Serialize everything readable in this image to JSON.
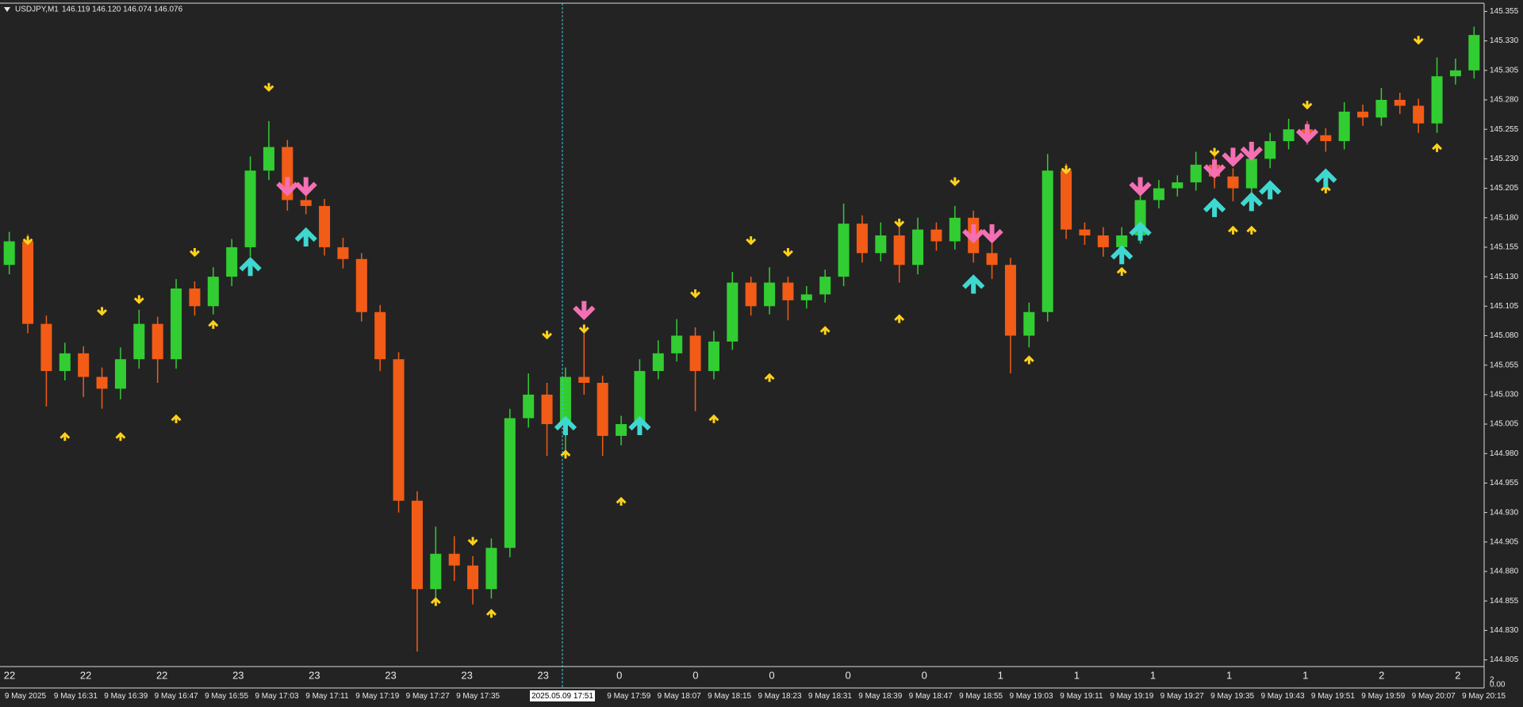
{
  "chart_data": {
    "type": "candlestick",
    "symbol": "USDJPY,M1",
    "header_prices": "146.119 146.120 146.074 146.076",
    "crosshair_label": "2025.05.09 17:51",
    "bull_color": "#32cd32",
    "bear_color": "#f25c16",
    "ylim": [
      144.8,
      145.362
    ],
    "yticks": [
      145.355,
      {
        "value": 145.33,
        "label": "145.330"
      },
      145.305,
      {
        "value": 145.28,
        "label": "145.280"
      },
      145.255,
      {
        "value": 145.23,
        "label": "145.230"
      },
      145.205,
      {
        "value": 145.18,
        "label": "145.180"
      },
      145.155,
      {
        "value": 145.13,
        "label": "145.130"
      },
      145.105,
      {
        "value": 145.08,
        "label": "145.080"
      },
      145.055,
      {
        "value": 145.03,
        "label": "145.030"
      },
      145.005,
      {
        "value": 144.98,
        "label": "144.980"
      },
      144.955,
      {
        "value": 144.93,
        "label": "144.930"
      },
      144.905,
      {
        "value": 144.88,
        "label": "144.880"
      },
      144.855,
      {
        "value": 144.83,
        "label": "144.830"
      },
      144.805
    ],
    "open": [
      145.14,
      145.16,
      145.09,
      145.05,
      145.065,
      145.045,
      145.035,
      145.06,
      145.09,
      145.06,
      145.12,
      145.105,
      145.13,
      145.155,
      145.22,
      145.24,
      145.195,
      145.19,
      145.155,
      145.145,
      145.1,
      145.06,
      144.94,
      144.865,
      144.895,
      144.885,
      144.865,
      144.9,
      145.01,
      145.03,
      145.005,
      145.045,
      145.04,
      144.995,
      145.005,
      145.05,
      145.065,
      145.08,
      145.05,
      145.075,
      145.125,
      145.105,
      145.125,
      145.11,
      145.115,
      145.13,
      145.175,
      145.15,
      145.165,
      145.14,
      145.17,
      145.16,
      145.18,
      145.15,
      145.14,
      145.08,
      145.1,
      145.22,
      145.17,
      145.165,
      145.155,
      145.165,
      145.195,
      145.205,
      145.21,
      145.225,
      145.215,
      145.205,
      145.23,
      145.245,
      145.255,
      145.25,
      145.245,
      145.27,
      145.265,
      145.28,
      145.275,
      145.26,
      145.3,
      145.305
    ],
    "high": [
      145.168,
      145.166,
      145.097,
      145.074,
      145.071,
      145.053,
      145.07,
      145.102,
      145.096,
      145.128,
      145.126,
      145.138,
      145.162,
      145.232,
      145.262,
      145.246,
      145.204,
      145.196,
      145.163,
      145.15,
      145.106,
      145.066,
      144.948,
      144.918,
      144.91,
      144.893,
      144.908,
      145.018,
      145.048,
      145.04,
      145.053,
      145.09,
      145.046,
      145.012,
      145.06,
      145.076,
      145.094,
      145.087,
      145.084,
      145.134,
      145.13,
      145.138,
      145.13,
      145.122,
      145.136,
      145.192,
      145.182,
      145.176,
      145.172,
      145.18,
      145.176,
      145.19,
      145.186,
      145.16,
      145.146,
      145.108,
      145.234,
      145.226,
      145.176,
      145.172,
      145.172,
      145.203,
      145.212,
      145.216,
      145.236,
      145.232,
      145.222,
      145.24,
      145.252,
      145.264,
      145.262,
      145.256,
      145.278,
      145.276,
      145.29,
      145.286,
      145.281,
      145.316,
      145.315,
      145.342
    ],
    "low": [
      145.132,
      145.082,
      145.02,
      145.042,
      145.028,
      145.018,
      145.026,
      145.052,
      145.04,
      145.052,
      145.097,
      145.098,
      145.122,
      145.147,
      145.212,
      145.186,
      145.183,
      145.148,
      145.137,
      145.092,
      145.05,
      144.93,
      144.812,
      144.856,
      144.872,
      144.852,
      144.857,
      144.892,
      145.002,
      144.978,
      144.982,
      145.03,
      144.978,
      144.987,
      144.998,
      145.043,
      145.058,
      145.016,
      145.043,
      145.068,
      145.097,
      145.098,
      145.093,
      145.103,
      145.108,
      145.122,
      145.142,
      145.143,
      145.125,
      145.132,
      145.152,
      145.153,
      145.142,
      145.128,
      145.048,
      145.07,
      145.092,
      145.162,
      145.157,
      145.147,
      145.148,
      145.158,
      145.188,
      145.198,
      145.203,
      145.205,
      145.194,
      145.197,
      145.222,
      145.238,
      145.242,
      145.236,
      145.238,
      145.258,
      145.258,
      145.268,
      145.252,
      145.252,
      145.293,
      145.298
    ],
    "close": [
      145.16,
      145.09,
      145.05,
      145.065,
      145.045,
      145.035,
      145.06,
      145.09,
      145.06,
      145.12,
      145.105,
      145.13,
      145.155,
      145.22,
      145.24,
      145.195,
      145.19,
      145.155,
      145.145,
      145.1,
      145.06,
      144.94,
      144.865,
      144.895,
      144.885,
      144.865,
      144.9,
      145.01,
      145.03,
      145.005,
      145.045,
      145.04,
      144.995,
      145.005,
      145.05,
      145.065,
      145.08,
      145.05,
      145.075,
      145.125,
      145.105,
      145.125,
      145.11,
      145.115,
      145.13,
      145.175,
      145.15,
      145.165,
      145.14,
      145.17,
      145.16,
      145.18,
      145.15,
      145.14,
      145.08,
      145.1,
      145.22,
      145.17,
      145.165,
      145.155,
      145.165,
      145.195,
      145.205,
      145.21,
      145.225,
      145.215,
      145.205,
      145.23,
      145.245,
      145.255,
      145.25,
      145.245,
      145.27,
      145.265,
      145.28,
      145.275,
      145.26,
      145.3,
      145.305,
      145.335
    ],
    "signals": [
      {
        "kind": "small-up",
        "color": "#ffd21a",
        "index": [
          3,
          6,
          9,
          11,
          23,
          26,
          30,
          33,
          38,
          41,
          44,
          48,
          55,
          60,
          66,
          67,
          71,
          77
        ],
        "price": [
          144.995,
          144.995,
          145.01,
          145.09,
          144.855,
          144.845,
          144.98,
          144.94,
          145.01,
          145.045,
          145.085,
          145.095,
          145.06,
          145.135,
          145.17,
          145.17,
          145.205,
          145.24
        ]
      },
      {
        "kind": "small-down",
        "color": "#ffd21a",
        "index": [
          1,
          5,
          7,
          10,
          14,
          25,
          29,
          31,
          37,
          40,
          42,
          48,
          51,
          57,
          65,
          70,
          76
        ],
        "price": [
          145.16,
          145.1,
          145.11,
          145.15,
          145.29,
          144.905,
          145.08,
          145.085,
          145.115,
          145.16,
          145.15,
          145.175,
          145.21,
          145.22,
          145.235,
          145.275,
          145.33
        ]
      },
      {
        "kind": "big-down",
        "color": "#f46fb4",
        "index": [
          15,
          16,
          31,
          52,
          53,
          61,
          65,
          66,
          67,
          70
        ],
        "price": [
          145.205,
          145.205,
          145.1,
          145.165,
          145.165,
          145.205,
          145.22,
          145.23,
          145.235,
          145.25
        ]
      },
      {
        "kind": "big-up",
        "color": "#3fd8d0",
        "index": [
          13,
          16,
          30,
          34,
          52,
          60,
          61,
          65,
          67,
          68,
          71
        ],
        "price": [
          145.14,
          145.165,
          145.005,
          145.005,
          145.125,
          145.15,
          145.17,
          145.19,
          145.195,
          145.205,
          145.215
        ]
      }
    ],
    "sub_labels": [
      22,
      22,
      22,
      23,
      23,
      23,
      23,
      23,
      0,
      0,
      0,
      0,
      0,
      1,
      1,
      1,
      1,
      1,
      2,
      2
    ],
    "sub_scale_labels": [
      "2",
      "0.00"
    ],
    "x_labels": [
      "9 May 2025",
      "9 May 16:31",
      "9 May 16:39",
      "9 May 16:47",
      "9 May 16:55",
      "9 May 17:03",
      "9 May 17:11",
      "9 May 17:19",
      "9 May 17:27",
      "9 May 17:35",
      null,
      null,
      "9 May 17:59",
      "9 May 18:07",
      "9 May 18:15",
      "9 May 18:23",
      "9 May 18:31",
      "9 May 18:39",
      "9 May 18:47",
      "9 May 18:55",
      "9 May 19:03",
      "9 May 19:11",
      "9 May 19:19",
      "9 May 19:27",
      "9 May 19:35",
      "9 May 19:43",
      "9 May 19:51",
      "9 May 19:59",
      "9 May 20:07",
      "9 May 20:15"
    ]
  }
}
